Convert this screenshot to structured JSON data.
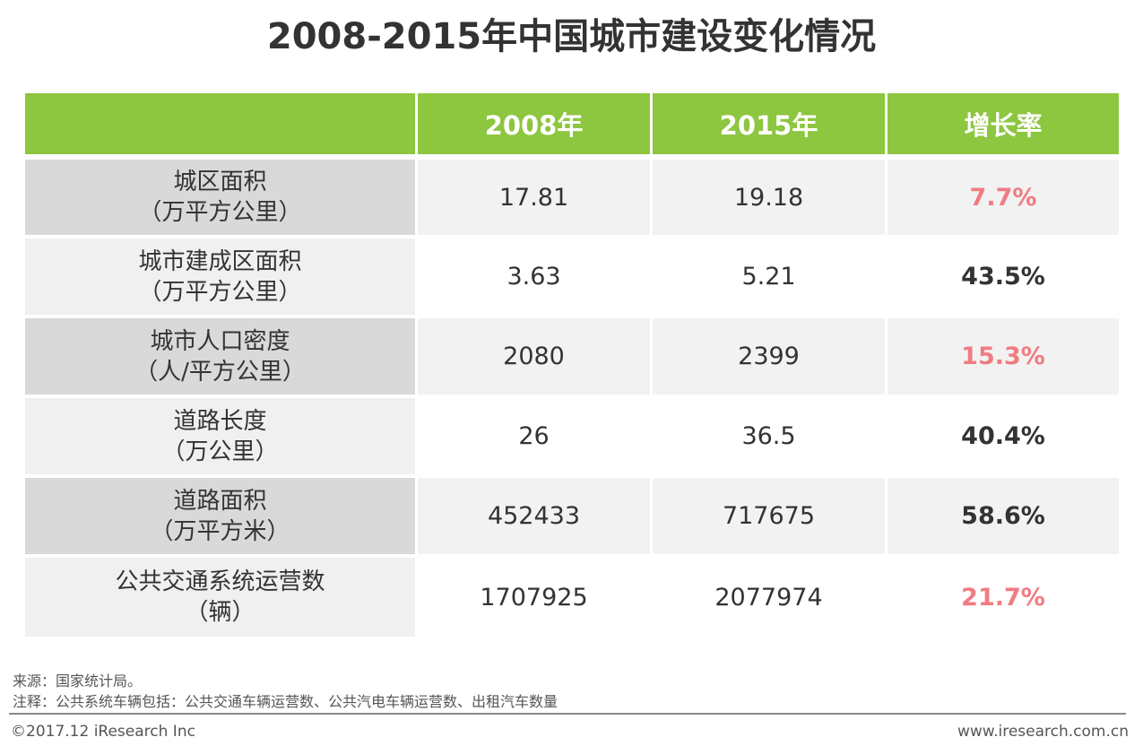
{
  "title": "2008-2015年中国城市建设变化情况",
  "colors": {
    "header_bg": "#8dc63f",
    "highlight": "#f07c82",
    "normal_rate": "#333333"
  },
  "chart_data": {
    "type": "table",
    "title": "2008-2015年中国城市建设变化情况",
    "columns": [
      "",
      "2008年",
      "2015年",
      "增长率"
    ],
    "rows": [
      {
        "name": "城区面积",
        "unit": "（万平方公里）",
        "v2008": "17.81",
        "v2015": "19.18",
        "rate": "7.7%",
        "highlight": true
      },
      {
        "name": "城市建成区面积",
        "unit": "（万平方公里）",
        "v2008": "3.63",
        "v2015": "5.21",
        "rate": "43.5%",
        "highlight": false
      },
      {
        "name": "城市人口密度",
        "unit": "（人/平方公里）",
        "v2008": "2080",
        "v2015": "2399",
        "rate": "15.3%",
        "highlight": true
      },
      {
        "name": "道路长度",
        "unit": "（万公里）",
        "v2008": "26",
        "v2015": "36.5",
        "rate": "40.4%",
        "highlight": false
      },
      {
        "name": "道路面积",
        "unit": "（万平方米）",
        "v2008": "452433",
        "v2015": "717675",
        "rate": "58.6%",
        "highlight": false
      },
      {
        "name": "公共交通系统运营数",
        "unit": "（辆）",
        "v2008": "1707925",
        "v2015": "2077974",
        "rate": "21.7%",
        "highlight": true
      }
    ]
  },
  "source": "来源：国家统计局。",
  "note": "注释：公共系统车辆包括：公共交通车辆运营数、公共汽电车辆运营数、出租汽车数量",
  "copyright": "©2017.12 iResearch Inc",
  "website": "www.iresearch.com.cn"
}
